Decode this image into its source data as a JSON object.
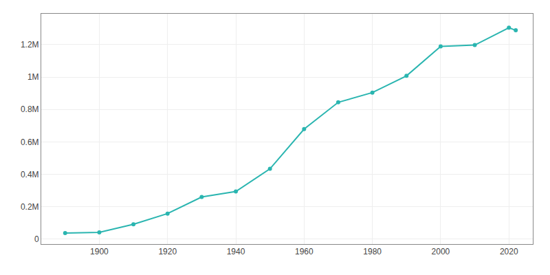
{
  "chart_data": {
    "type": "line",
    "x": [
      1890,
      1900,
      1910,
      1920,
      1930,
      1940,
      1950,
      1960,
      1970,
      1980,
      1990,
      2000,
      2010,
      2020,
      2022
    ],
    "values": [
      38000,
      42000,
      92000,
      158000,
      260000,
      294000,
      434000,
      679000,
      844000,
      904000,
      1007000,
      1189000,
      1197000,
      1304000,
      1288000
    ],
    "color": "#2ab5b0",
    "marker": "circle",
    "xlim": [
      1883,
      2027
    ],
    "xticks": [
      1900,
      1920,
      1940,
      1960,
      1980,
      2000,
      2020
    ],
    "ylim": [
      -30000,
      1390000
    ],
    "yticks": [
      0,
      {
        "value": 200000,
        "label": "0.2M"
      },
      {
        "value": 400000,
        "label": "0.4M"
      },
      {
        "value": 600000,
        "label": "0.6M"
      },
      {
        "value": 800000,
        "label": "0.8M"
      },
      {
        "value": 1000000,
        "label": "1M"
      },
      {
        "value": 1200000,
        "label": "1.2M"
      }
    ],
    "grid": true
  }
}
